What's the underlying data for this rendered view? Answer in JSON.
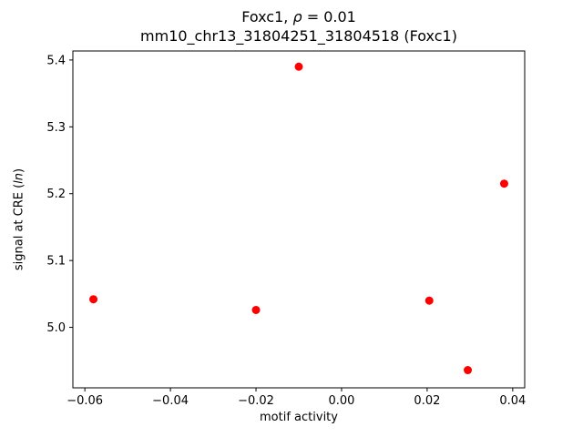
{
  "figure": {
    "title": {
      "line1_prefix": "Foxc1, ",
      "line1_italic": "ρ",
      "line1_suffix": " = 0.01",
      "line2": "mm10_chr13_31804251_31804518 (Foxc1)"
    },
    "xlabel": "motif activity",
    "ylabel": {
      "prefix": "signal at CRE (",
      "italic": "ln",
      "suffix": ")"
    }
  },
  "chart_data": {
    "type": "scatter",
    "title": "Foxc1, ρ = 0.01",
    "subtitle": "mm10_chr13_31804251_31804518 (Foxc1)",
    "xlabel": "motif activity",
    "ylabel": "signal at CRE (ln)",
    "marker": "circle",
    "marker_color": "#ff0000",
    "marker_radius_px": 4.5,
    "grid": false,
    "legend": null,
    "xlim": [
      -0.0628,
      0.0428
    ],
    "ylim": [
      4.9095,
      5.4135
    ],
    "xticks": [
      -0.06,
      -0.04,
      -0.02,
      0,
      0.02,
      0.04
    ],
    "xtick_labels": [
      "−0.06",
      "−0.04",
      "−0.02",
      "0.00",
      "0.02",
      "0.04"
    ],
    "yticks": [
      5.0,
      5.1,
      5.2,
      5.3,
      5.4
    ],
    "ytick_labels": [
      "5.0",
      "5.1",
      "5.2",
      "5.3",
      "5.4"
    ],
    "points": [
      {
        "x": -0.058,
        "y": 5.042
      },
      {
        "x": -0.02,
        "y": 5.026
      },
      {
        "x": -0.01,
        "y": 5.39
      },
      {
        "x": 0.0205,
        "y": 5.04
      },
      {
        "x": 0.0295,
        "y": 4.936
      },
      {
        "x": 0.038,
        "y": 5.215
      }
    ]
  }
}
